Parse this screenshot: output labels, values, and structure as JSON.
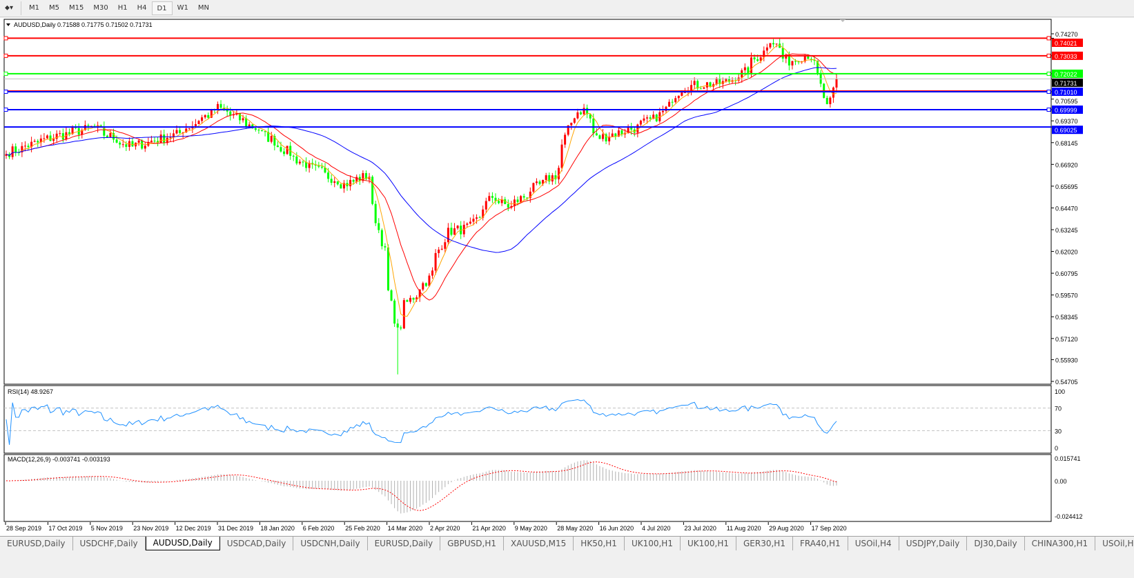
{
  "toolbar": {
    "timeframes": [
      "M1",
      "M5",
      "M15",
      "M30",
      "H1",
      "H4",
      "D1",
      "W1",
      "MN"
    ],
    "active": "D1"
  },
  "chart": {
    "header": "AUDUSD,Daily  0.71588 0.71775 0.71502 0.71731",
    "price_axis": [
      "0.74270",
      "0.70595",
      "0.69370",
      "0.68145",
      "0.66920",
      "0.65695",
      "0.64470",
      "0.63245",
      "0.62020",
      "0.60795",
      "0.59570",
      "0.58345",
      "0.57120",
      "0.55930",
      "0.54705"
    ],
    "current_price": "0.71731",
    "levels": [
      {
        "price": "0.74021",
        "color": "#ff0000"
      },
      {
        "price": "0.73033",
        "color": "#ff0000"
      },
      {
        "price": "0.72022",
        "color": "#00ff00"
      },
      {
        "price": "0.71010",
        "color": "#0000ff"
      },
      {
        "price": "0.69999",
        "color": "#0000ff"
      },
      {
        "price": "0.69025",
        "color": "#0000ff"
      }
    ],
    "colors": {
      "bull": "#ff0000",
      "bear": "#00ff00",
      "ma_fast": "#ffa500",
      "ma_mid": "#ff0000",
      "ma_slow": "#0000ff"
    },
    "date_axis": [
      "28 Sep 2019",
      "17 Oct 2019",
      "5 Nov 2019",
      "23 Nov 2019",
      "12 Dec 2019",
      "31 Dec 2019",
      "18 Jan 2020",
      "6 Feb 2020",
      "25 Feb 2020",
      "14 Mar 2020",
      "2 Apr 2020",
      "21 Apr 2020",
      "9 May 2020",
      "28 May 2020",
      "16 Jun 2020",
      "4 Jul 2020",
      "23 Jul 2020",
      "11 Aug 2020",
      "29 Aug 2020",
      "17 Sep 2020"
    ]
  },
  "rsi": {
    "label": "RSI(14) 48.9267",
    "axis": [
      "100",
      "70",
      "30",
      "0"
    ]
  },
  "macd": {
    "label": "MACD(12,26,9) -0.003741 -0.003193",
    "axis": [
      "0.015741",
      "0.00",
      "-0.024412"
    ]
  },
  "chart_data": {
    "type": "candlestick",
    "symbol": "AUDUSD",
    "timeframe": "Daily",
    "ylim": [
      0.54705,
      0.7427
    ],
    "closes": [
      [
        "2019-09-27",
        0.675
      ],
      [
        "2019-10-17",
        0.684
      ],
      [
        "2019-11-05",
        0.69
      ],
      [
        "2019-11-22",
        0.679
      ],
      [
        "2019-12-12",
        0.686
      ],
      [
        "2019-12-31",
        0.701
      ],
      [
        "2020-01-17",
        0.689
      ],
      [
        "2020-02-06",
        0.67
      ],
      [
        "2020-02-25",
        0.658
      ],
      [
        "2020-03-06",
        0.663
      ],
      [
        "2020-03-13",
        0.62
      ],
      [
        "2020-03-19",
        0.575
      ],
      [
        "2020-03-23",
        0.59
      ],
      [
        "2020-04-02",
        0.605
      ],
      [
        "2020-04-10",
        0.631
      ],
      [
        "2020-04-21",
        0.634
      ],
      [
        "2020-04-30",
        0.651
      ],
      [
        "2020-05-08",
        0.645
      ],
      [
        "2020-05-18",
        0.655
      ],
      [
        "2020-05-28",
        0.663
      ],
      [
        "2020-06-05",
        0.697
      ],
      [
        "2020-06-10",
        0.7
      ],
      [
        "2020-06-16",
        0.684
      ],
      [
        "2020-06-25",
        0.687
      ],
      [
        "2020-07-03",
        0.69
      ],
      [
        "2020-07-14",
        0.697
      ],
      [
        "2020-07-23",
        0.712
      ],
      [
        "2020-07-31",
        0.714
      ],
      [
        "2020-08-11",
        0.715
      ],
      [
        "2020-08-20",
        0.721
      ],
      [
        "2020-08-31",
        0.737
      ],
      [
        "2020-09-01",
        0.74
      ],
      [
        "2020-09-08",
        0.727
      ],
      [
        "2020-09-17",
        0.731
      ],
      [
        "2020-09-21",
        0.725
      ],
      [
        "2020-09-25",
        0.701
      ],
      [
        "2020-09-28",
        0.704
      ],
      [
        "2020-09-30",
        0.71731
      ]
    ],
    "rsi_levels": [
      30,
      70
    ],
    "rsi_range": [
      0,
      100
    ],
    "macd_range": [
      -0.024412,
      0.015741
    ]
  },
  "tabs": [
    "EURUSD,Daily",
    "USDCHF,Daily",
    "AUDUSD,Daily",
    "USDCAD,Daily",
    "USDCNH,Daily",
    "EURUSD,Daily",
    "GBPUSD,H1",
    "XAUUSD,M15",
    "HK50,H1",
    "UK100,H1",
    "UK100,H1",
    "GER30,H1",
    "FRA40,H1",
    "USOil,H4",
    "USDJPY,Daily",
    "DJ30,Daily",
    "CHINA300,H1",
    "USOil,H"
  ],
  "active_tab": 2
}
